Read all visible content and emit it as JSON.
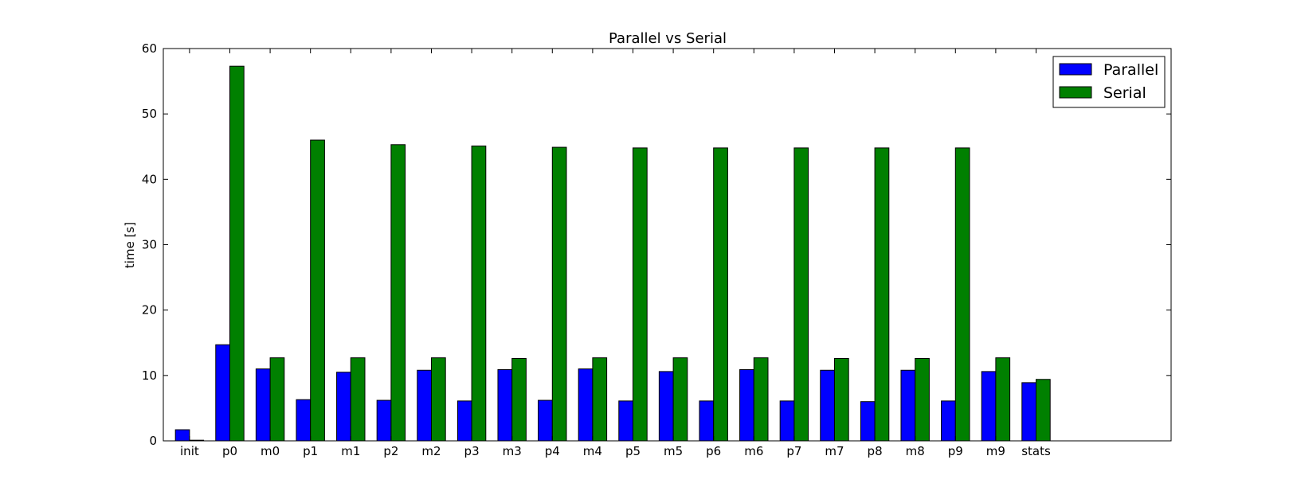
{
  "chart_data": {
    "type": "bar",
    "title": "Parallel vs Serial",
    "xlabel": "",
    "ylabel": "time [s]",
    "ylim": [
      0,
      60
    ],
    "yticks": [
      0,
      10,
      20,
      30,
      40,
      50,
      60
    ],
    "grid": false,
    "legend_position": "top-right",
    "categories": [
      "init",
      "p0",
      "m0",
      "p1",
      "m1",
      "p2",
      "m2",
      "p3",
      "m3",
      "p4",
      "m4",
      "p5",
      "m5",
      "p6",
      "m6",
      "p7",
      "m7",
      "p8",
      "m8",
      "p9",
      "m9",
      "stats"
    ],
    "series": [
      {
        "name": "Parallel",
        "color": "#0000ff",
        "values": [
          1.7,
          14.7,
          11.0,
          6.3,
          10.5,
          6.2,
          10.8,
          6.1,
          10.9,
          6.2,
          11.0,
          6.1,
          10.6,
          6.1,
          10.9,
          6.1,
          10.8,
          6.0,
          10.8,
          6.1,
          10.6,
          8.9
        ]
      },
      {
        "name": "Serial",
        "color": "#008000",
        "values": [
          0.1,
          57.3,
          12.7,
          46.0,
          12.7,
          45.3,
          12.7,
          45.1,
          12.6,
          44.9,
          12.7,
          44.8,
          12.7,
          44.8,
          12.7,
          44.8,
          12.6,
          44.8,
          12.6,
          44.8,
          12.7,
          9.4
        ]
      }
    ]
  }
}
